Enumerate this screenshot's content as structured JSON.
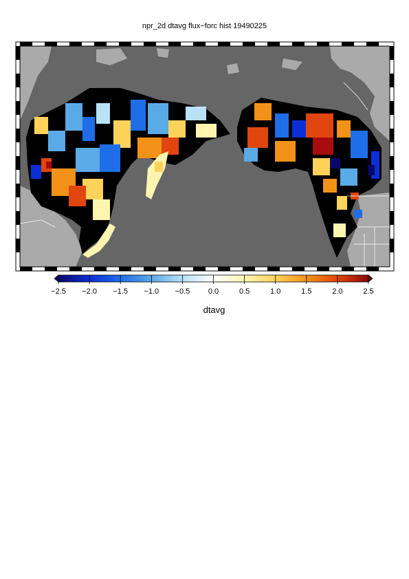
{
  "map": {
    "title": "npr_2d dtavg flux−forc hist 19490225",
    "variable": "dtavg",
    "colors": {
      "ocean": "#666666",
      "land_outside": "#aaaaaa",
      "boundary_lines": "#ffffff",
      "frame": "#000000"
    }
  },
  "colorbar": {
    "label": "dtavg",
    "range": [
      -2.5,
      2.5
    ],
    "tick_labels": [
      "−2.5",
      "−2.0",
      "−1.5",
      "−1.0",
      "−0.5",
      "0.0",
      "0.5",
      "1.0",
      "1.5",
      "2.0",
      "2.5"
    ],
    "colors": [
      "#08086a",
      "#0b2fd6",
      "#1f6ee8",
      "#5aaae8",
      "#b9e2f6",
      "#ffffff",
      "#fff5b0",
      "#ffd35a",
      "#f39219",
      "#e0460e",
      "#a80c0c",
      "#6a0606"
    ]
  }
}
